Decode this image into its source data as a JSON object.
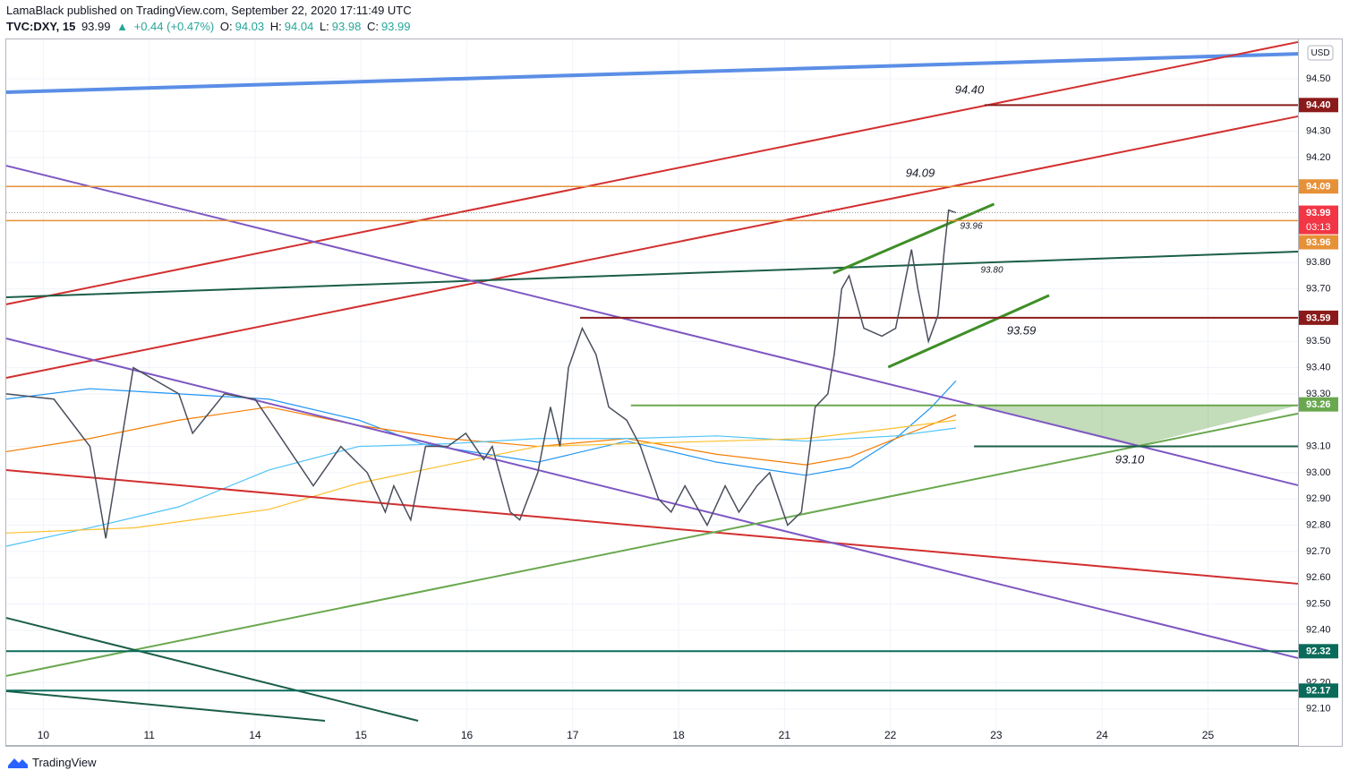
{
  "header": {
    "publisher": "LamaBlack published on TradingView.com, September 22, 2020 17:11:49 UTC",
    "symbol": "TVC:DXY, 15",
    "last": "93.99",
    "arrow": "▲",
    "change": "+0.44 (+0.47%)",
    "o_label": "O:",
    "o": "94.03",
    "h_label": "H:",
    "h": "94.04",
    "l_label": "L:",
    "l": "93.98",
    "c_label": "C:",
    "c": "93.99"
  },
  "footer": {
    "brand": "TradingView"
  },
  "chart_data": {
    "type": "line",
    "currency": "USD",
    "xlim": [
      -0.35,
      11.85
    ],
    "ylim": [
      91.963,
      94.65
    ],
    "xticks": [
      {
        "value": 0,
        "label": "10"
      },
      {
        "value": 1,
        "label": "11"
      },
      {
        "value": 2,
        "label": "14"
      },
      {
        "value": 3,
        "label": "15"
      },
      {
        "value": 4,
        "label": "16"
      },
      {
        "value": 5,
        "label": "17"
      },
      {
        "value": 6,
        "label": "18"
      },
      {
        "value": 7,
        "label": "21"
      },
      {
        "value": 8,
        "label": "22"
      },
      {
        "value": 9,
        "label": "23"
      },
      {
        "value": 10,
        "label": "24"
      },
      {
        "value": 11,
        "label": "25"
      }
    ],
    "yticks": [
      {
        "value": 94.5,
        "label": "94.50"
      },
      {
        "value": 94.3,
        "label": "94.30"
      },
      {
        "value": 94.2,
        "label": "94.20"
      },
      {
        "value": 93.8,
        "label": "93.80"
      },
      {
        "value": 93.7,
        "label": "93.70"
      },
      {
        "value": 93.5,
        "label": "93.50"
      },
      {
        "value": 93.4,
        "label": "93.40"
      },
      {
        "value": 93.3,
        "label": "93.30"
      },
      {
        "value": 93.1,
        "label": "93.10"
      },
      {
        "value": 93.0,
        "label": "93.00"
      },
      {
        "value": 92.9,
        "label": "92.90"
      },
      {
        "value": 92.8,
        "label": "92.80"
      },
      {
        "value": 92.7,
        "label": "92.70"
      },
      {
        "value": 92.6,
        "label": "92.60"
      },
      {
        "value": 92.5,
        "label": "92.50"
      },
      {
        "value": 92.4,
        "label": "92.40"
      },
      {
        "value": 92.2,
        "label": "92.20"
      },
      {
        "value": 92.1,
        "label": "92.10"
      }
    ],
    "grid": true,
    "price": {
      "color": "#4a4f5c",
      "t": [
        -0.35,
        0.1,
        0.44,
        0.59,
        0.85,
        1.28,
        1.41,
        1.71,
        2.0,
        2.3,
        2.55,
        2.81,
        3.06,
        3.23,
        3.31,
        3.47,
        3.61,
        3.82,
        3.99,
        4.16,
        4.24,
        4.41,
        4.5,
        4.67,
        4.79,
        4.88,
        4.96,
        5.09,
        5.22,
        5.34,
        5.51,
        5.64,
        5.81,
        5.93,
        6.06,
        6.27,
        6.44,
        6.57,
        6.74,
        6.86,
        7.03,
        7.16,
        7.29,
        7.41,
        7.47,
        7.54,
        7.61,
        7.75,
        7.92,
        8.05,
        8.2,
        8.26,
        8.36,
        8.45,
        8.51,
        8.55,
        8.62
      ],
      "values": [
        93.3,
        93.28,
        93.1,
        92.75,
        93.4,
        93.3,
        93.15,
        93.3,
        93.28,
        93.1,
        92.95,
        93.1,
        93.0,
        92.85,
        92.95,
        92.82,
        93.1,
        93.1,
        93.15,
        93.05,
        93.1,
        92.85,
        92.82,
        93.0,
        93.25,
        93.1,
        93.4,
        93.55,
        93.45,
        93.25,
        93.2,
        93.1,
        92.9,
        92.85,
        92.95,
        92.8,
        92.95,
        92.85,
        92.95,
        93.0,
        92.8,
        92.85,
        93.25,
        93.3,
        93.45,
        93.7,
        93.75,
        93.55,
        93.52,
        93.55,
        93.85,
        93.7,
        93.5,
        93.6,
        93.85,
        94.0,
        93.99
      ]
    },
    "moving_averages": [
      {
        "color": "#2196f3",
        "t": [
          -0.35,
          0.44,
          1.28,
          2.13,
          2.98,
          3.57,
          4.67,
          5.51,
          6.36,
          7.2,
          7.62,
          8.05,
          8.39,
          8.62
        ],
        "values": [
          93.28,
          93.32,
          93.3,
          93.28,
          93.2,
          93.11,
          93.04,
          93.12,
          93.04,
          92.99,
          93.02,
          93.13,
          93.25,
          93.35
        ]
      },
      {
        "color": "#f57c00",
        "t": [
          -0.35,
          0.44,
          1.28,
          2.13,
          2.98,
          3.82,
          4.67,
          5.51,
          6.36,
          7.2,
          7.62,
          8.05,
          8.62
        ],
        "values": [
          93.08,
          93.13,
          93.2,
          93.25,
          93.18,
          93.13,
          93.1,
          93.13,
          93.07,
          93.03,
          93.06,
          93.13,
          93.22
        ]
      },
      {
        "color": "#4fc3f7",
        "t": [
          -0.35,
          0.44,
          1.28,
          2.13,
          2.98,
          3.82,
          4.67,
          5.51,
          6.36,
          7.2,
          8.05,
          8.62
        ],
        "values": [
          92.72,
          92.79,
          92.87,
          93.01,
          93.1,
          93.11,
          93.13,
          93.13,
          93.14,
          93.12,
          93.14,
          93.17
        ]
      },
      {
        "color": "#fbc02d",
        "t": [
          -0.35,
          0.86,
          2.13,
          2.98,
          3.82,
          4.67,
          5.51,
          6.36,
          7.2,
          8.05,
          8.62
        ],
        "values": [
          92.77,
          92.79,
          92.86,
          92.96,
          93.03,
          93.1,
          93.11,
          93.12,
          93.13,
          93.17,
          93.2
        ]
      }
    ],
    "drawings": [
      {
        "color": "#5b8ee6",
        "width": 4,
        "t": [
          -0.35,
          11.85
        ],
        "values": [
          94.449,
          94.595
        ]
      },
      {
        "color": "#d32f2f",
        "width": 2,
        "t": [
          -0.35,
          11.85
        ],
        "values": [
          93.641,
          94.64
        ]
      },
      {
        "color": "#d32f2f",
        "width": 2,
        "t": [
          -0.35,
          11.85
        ],
        "values": [
          93.361,
          94.357
        ]
      },
      {
        "color": "#d32f2f",
        "width": 2,
        "t": [
          -0.35,
          11.85
        ],
        "values": [
          93.01,
          92.577
        ]
      },
      {
        "color": "#1b5e48",
        "width": 2,
        "t": [
          -0.35,
          11.85
        ],
        "values": [
          93.668,
          93.842
        ]
      },
      {
        "color": "#7e57c2",
        "width": 2,
        "t": [
          -0.35,
          11.85
        ],
        "values": [
          94.169,
          92.952
        ]
      },
      {
        "color": "#7e57c2",
        "width": 2,
        "t": [
          -0.35,
          11.85
        ],
        "values": [
          93.511,
          92.294
        ]
      },
      {
        "color": "#6aa84f",
        "width": 2,
        "t": [
          -0.35,
          11.85
        ],
        "values": [
          92.226,
          93.225
        ]
      },
      {
        "color": "#1b5e48",
        "width": 2,
        "t": [
          -0.35,
          3.54
        ],
        "values": [
          92.447,
          92.055
        ]
      },
      {
        "color": "#1b5e48",
        "width": 2,
        "t": [
          -0.35,
          2.66
        ],
        "values": [
          92.168,
          92.055
        ]
      },
      {
        "color": "#3e8e27",
        "width": 3,
        "t": [
          7.46,
          8.98
        ],
        "values": [
          93.76,
          94.023
        ]
      },
      {
        "color": "#3e8e27",
        "width": 3,
        "t": [
          7.98,
          9.5
        ],
        "values": [
          93.402,
          93.675
        ]
      },
      {
        "color": "#8b1a1a",
        "width": 2,
        "t": [
          8.89,
          11.85
        ],
        "values": [
          94.4,
          94.4
        ]
      },
      {
        "color": "#e69138",
        "width": 1.5,
        "t": [
          -0.35,
          11.85
        ],
        "values": [
          94.09,
          94.09
        ]
      },
      {
        "color": "#e69138",
        "width": 1.5,
        "t": [
          -0.35,
          11.85
        ],
        "values": [
          93.96,
          93.96
        ]
      },
      {
        "color": "#8b1a1a",
        "width": 2,
        "t": [
          5.07,
          11.85
        ],
        "values": [
          93.59,
          93.59
        ]
      },
      {
        "color": "#6aa84f",
        "width": 2,
        "t": [
          5.55,
          11.85
        ],
        "values": [
          93.256,
          93.256
        ]
      },
      {
        "color": "#1b5e48",
        "width": 2,
        "t": [
          8.79,
          11.85
        ],
        "values": [
          93.1,
          93.1
        ]
      },
      {
        "color": "#0b6b5a",
        "width": 2,
        "t": [
          -0.35,
          11.85
        ],
        "values": [
          92.32,
          92.32
        ]
      },
      {
        "color": "#0b6b5a",
        "width": 2,
        "t": [
          -0.35,
          11.85
        ],
        "values": [
          92.17,
          92.17
        ]
      }
    ],
    "zone": {
      "color": "#6aa84f",
      "t": [
        8.79,
        11.85,
        10.31
      ],
      "values": [
        93.256,
        93.256,
        93.1
      ]
    },
    "price_tags": [
      {
        "value": 94.4,
        "label": "94.40",
        "color": "#8b1a1a"
      },
      {
        "value": 94.09,
        "label": "94.09",
        "color": "#e69138"
      },
      {
        "value": 93.99,
        "label": "93.99",
        "color": "#f23645",
        "countdown": "03:13"
      },
      {
        "value": 93.96,
        "label": "93.96",
        "color": "#e69138"
      },
      {
        "value": 93.59,
        "label": "93.59",
        "color": "#8b1a1a"
      },
      {
        "value": 93.26,
        "label": "93.26",
        "color": "#6aa84f"
      },
      {
        "value": 92.32,
        "label": "92.32",
        "color": "#0b6b5a"
      },
      {
        "value": 92.17,
        "label": "92.17",
        "color": "#0b6b5a"
      }
    ],
    "annotations": [
      "94.40",
      "94.09",
      "93.96",
      "93.80",
      "93.59",
      "93.10"
    ]
  }
}
